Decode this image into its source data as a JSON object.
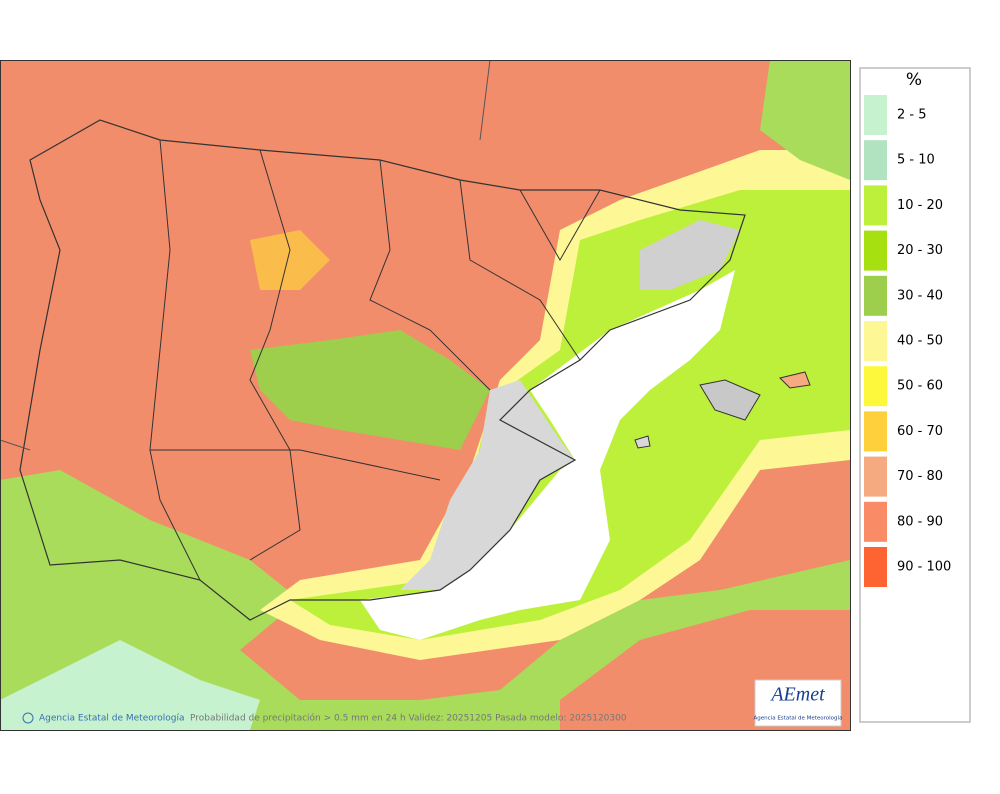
{
  "legend": {
    "title": "%",
    "items": [
      {
        "label": "2 - 5",
        "color": "#c6f2d0"
      },
      {
        "label": "5 - 10",
        "color": "#b2e3c1"
      },
      {
        "label": "10 - 20",
        "color": "#bdf03a"
      },
      {
        "label": "20 - 30",
        "color": "#a6e010"
      },
      {
        "label": "30 - 40",
        "color": "#9dcf4c"
      },
      {
        "label": "40 - 50",
        "color": "#fdf796"
      },
      {
        "label": "50 - 60",
        "color": "#fdf83c"
      },
      {
        "label": "60 - 70",
        "color": "#fdd03c"
      },
      {
        "label": "70 - 80",
        "color": "#f5aa80"
      },
      {
        "label": "80 - 90",
        "color": "#f98c66"
      },
      {
        "label": "90 - 100",
        "color": "#fe6432"
      }
    ]
  },
  "footer": {
    "agency": "Agencia Estatal de Meteorología",
    "description": "Probabilidad de precipitación > 0.5 mm en 24 h Validez: 20251205 Pasada modelo: 2025120300"
  },
  "logo": {
    "name": "AEmet",
    "subtitle": "Agencia Estatal de Meteorología"
  }
}
